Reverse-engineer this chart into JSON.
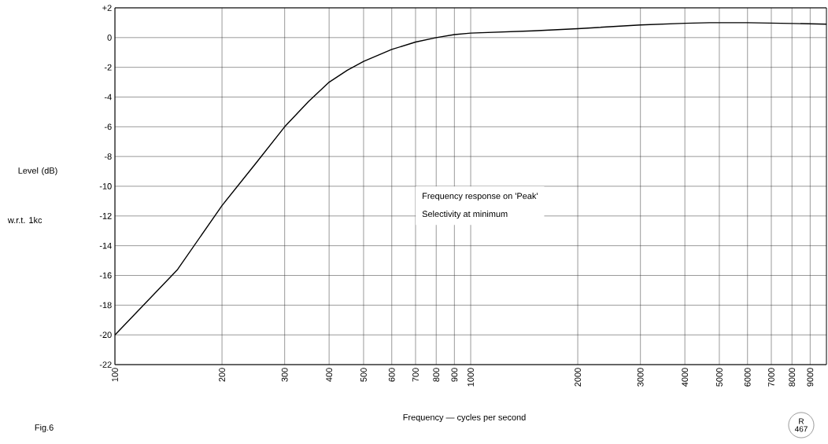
{
  "chart_data": {
    "type": "line",
    "xlabel": "Frequency — cycles per second",
    "ylabel": "Level (dB)",
    "annotations": [
      "Frequency response on 'Peak'",
      "Selectivity at minimum",
      "w.r.t. 1kc",
      "Fig.6",
      "R 467"
    ],
    "x": [
      100,
      150,
      200,
      250,
      300,
      350,
      400,
      450,
      500,
      600,
      700,
      800,
      900,
      1000,
      1500,
      2000,
      3000,
      4000,
      4700,
      6000,
      8000,
      10000
    ],
    "series": [
      {
        "color": "#000000",
        "values": [
          -20,
          -15.6,
          -11.3,
          -8.4,
          -6,
          -4.3,
          -3,
          -2.2,
          -1.6,
          -0.8,
          -0.3,
          0,
          0.2,
          0.3,
          0.45,
          0.6,
          0.85,
          0.96,
          1.0,
          1.0,
          0.95,
          0.9
        ]
      }
    ],
    "log": "x",
    "grid": true,
    "xlim": [
      100,
      10000
    ],
    "ylim": [
      -22,
      2
    ],
    "xticks": [
      100,
      200,
      300,
      400,
      500,
      600,
      700,
      800,
      900,
      1000,
      2000,
      3000,
      4000,
      5000,
      6000,
      7000,
      8000,
      9000
    ],
    "yticks": [
      {
        "value": 2,
        "label": "+2"
      },
      0,
      -2,
      -4,
      -6,
      -8,
      -10,
      -12,
      -14,
      -16,
      -18,
      -20,
      -22
    ]
  }
}
